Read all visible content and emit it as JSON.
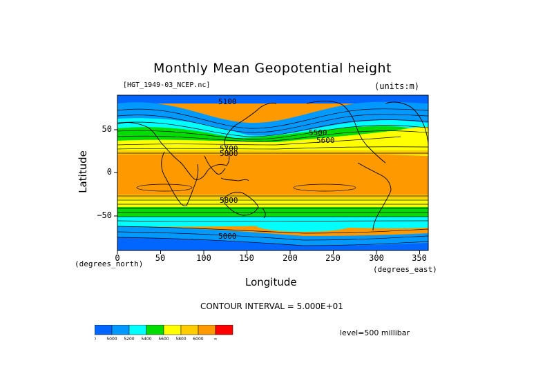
{
  "title": "Monthly Mean Geopotential height",
  "dataset": "[HGT_1949-03_NCEP.nc]",
  "units": "(units:m)",
  "axes": {
    "xlabel": "Longitude",
    "ylabel": "Latitude",
    "x_unit": "(degrees_east)",
    "y_unit": "(degrees_north)",
    "x_ticks": [
      "0",
      "50",
      "100",
      "150",
      "200",
      "250",
      "300",
      "350"
    ],
    "y_ticks": [
      "50",
      "0",
      "−50"
    ]
  },
  "contour_interval": "CONTOUR INTERVAL = 5.000E+01",
  "level": "level=500 millibar",
  "contour_labels": [
    "5100",
    "5500",
    "5600",
    "5700",
    "5800",
    "5800",
    "5000"
  ],
  "colorbar": {
    "ticks": [
      "0",
      "5000",
      "5200",
      "5400",
      "5600",
      "5800",
      "6000",
      "∞"
    ],
    "colors": [
      "#0066ff",
      "#0099ff",
      "#00ffff",
      "#00dd00",
      "#ffff00",
      "#ffcc00",
      "#ff9900",
      "#ff0000"
    ]
  },
  "chart_data": {
    "type": "heatmap",
    "variable": "Geopotential height",
    "units": "m",
    "level": "500 millibar",
    "xlim": [
      0,
      360
    ],
    "ylim": [
      -90,
      90
    ],
    "x_ticks": [
      0,
      50,
      100,
      150,
      200,
      250,
      300,
      350
    ],
    "y_ticks": [
      50,
      0,
      -50
    ],
    "color_levels": [
      0,
      5000,
      5200,
      5400,
      5600,
      5800,
      6000
    ],
    "contour_interval": 50
  }
}
